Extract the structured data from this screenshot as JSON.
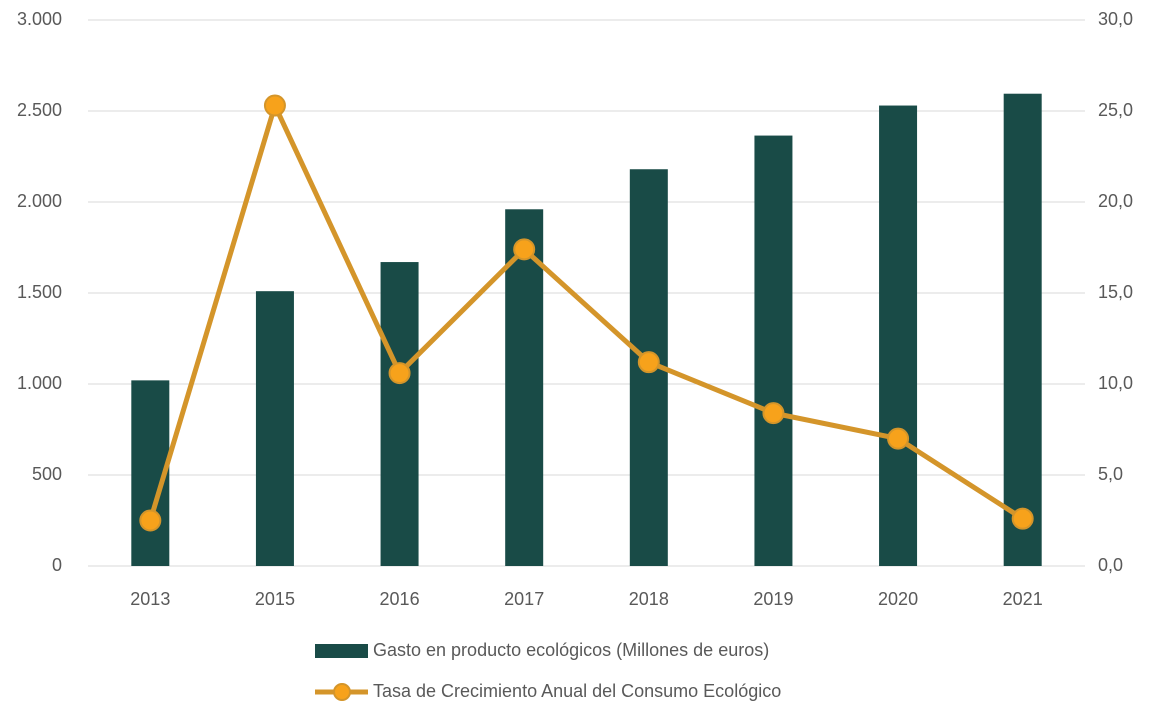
{
  "chart_data": {
    "type": "bar_line",
    "categories": [
      "2013",
      "2015",
      "2016",
      "2017",
      "2018",
      "2019",
      "2020",
      "2021"
    ],
    "series": [
      {
        "name": "Gasto en producto ecológicos (Millones de euros)",
        "type": "bar",
        "color": "#194b47",
        "values": [
          1020,
          1510,
          1670,
          1960,
          2180,
          2365,
          2530,
          2595
        ]
      },
      {
        "name": "Tasa de Crecimiento Anual del Consumo Ecológico",
        "type": "line",
        "axis": "y2",
        "color": "#d4952a",
        "marker_color": "#f7a21b",
        "values": [
          2.5,
          25.3,
          10.6,
          17.4,
          11.2,
          8.4,
          7.0,
          2.6
        ]
      }
    ],
    "ylim": [
      0,
      3000
    ],
    "yticks": [
      0,
      500,
      {
        "value": 1000,
        "label": "1.000"
      },
      {
        "value": 1500,
        "label": "1.500"
      },
      {
        "value": 2000,
        "label": "2.000"
      },
      {
        "value": 2500,
        "label": "2.500"
      },
      {
        "value": 3000,
        "label": "3.000"
      }
    ],
    "y2lim": [
      0,
      30
    ],
    "y2ticks": [
      {
        "value": 0,
        "label": "0,0"
      },
      {
        "value": 5,
        "label": "5,0"
      },
      {
        "value": 10,
        "label": "10,0"
      },
      {
        "value": 15,
        "label": "15,0"
      },
      {
        "value": 20,
        "label": "20,0"
      },
      {
        "value": 25,
        "label": "25,0"
      },
      {
        "value": 30,
        "label": "30,0"
      }
    ],
    "grid": true,
    "legend": "bottom"
  }
}
